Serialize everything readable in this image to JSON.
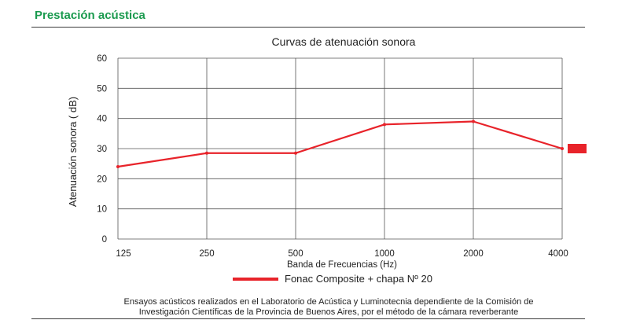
{
  "section": {
    "title": "Prestación acústica"
  },
  "chart_data": {
    "type": "line",
    "title": "Curvas de atenuación sonora",
    "xlabel": "Banda de Frecuencias (Hz)",
    "ylabel": "Atenuación sonora ( dB)",
    "categories": [
      "125",
      "250",
      "500",
      "1000",
      "2000",
      "4000"
    ],
    "ylim": [
      0,
      60
    ],
    "yticks": [
      0,
      10,
      20,
      30,
      40,
      50,
      60
    ],
    "grid": true,
    "legend_position": "bottom-center",
    "series": [
      {
        "name": "Fonac Composite + chapa Nº 20",
        "color": "#e8232a",
        "values": [
          24,
          28.5,
          28.5,
          38,
          39,
          30
        ]
      }
    ],
    "marker_color": "#e8232a"
  },
  "footnote": {
    "line1": "Ensayos acústicos realizados en el Laboratorio de Acústica y Luminotecnia dependiente de la Comisión de",
    "line2": "Investigación Científicas de la Provincia de Buenos Aires, por el método de la cámara reverberante"
  }
}
